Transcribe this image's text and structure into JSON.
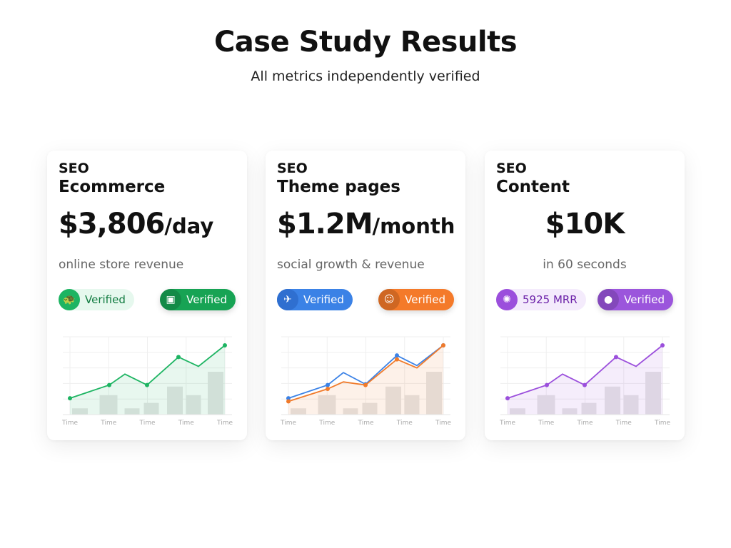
{
  "header": {
    "title": "Case Study Results",
    "subtitle": "All metrics independently verified"
  },
  "cards": [
    {
      "category": "SEO",
      "name": "Ecommerce",
      "metric": "$3,806",
      "unit": "/day",
      "description": "online store revenue",
      "badges": [
        {
          "icon": "turtle-icon",
          "label": "Verified"
        },
        {
          "icon": "box-stack-icon",
          "label": "Verified"
        }
      ],
      "colors": {
        "accent": "#1db462",
        "badge1_bg": "#e6f8ee",
        "badge1_text": "#0f7a3f",
        "badge2_bg": "#17a354"
      }
    },
    {
      "category": "SEO",
      "name": "Theme pages",
      "metric": "$1.2M",
      "unit": "/month",
      "description": "social growth & revenue",
      "badges": [
        {
          "icon": "rocket-icon",
          "label": "Verified"
        },
        {
          "icon": "badge-face-icon",
          "label": "Verified"
        }
      ],
      "colors": {
        "accent": "#f07a2a",
        "accent2": "#3b82e6",
        "badge1_bg": "#3b82e6",
        "badge1_text": "#ffffff",
        "badge2_bg": "#f47a2a"
      }
    },
    {
      "category": "SEO",
      "name": "Content",
      "metric": "$10K",
      "unit": "",
      "description": "in 60 seconds",
      "badges": [
        {
          "icon": "gear-bug-icon",
          "label": "5925 MRR"
        },
        {
          "icon": "piggy-bank-icon",
          "label": "Verified"
        }
      ],
      "colors": {
        "accent": "#9b4fdc",
        "badge1_bg": "#f4ebfc",
        "badge1_text": "#6b21a8",
        "badge2_bg": "#9b55dc"
      }
    }
  ],
  "chart_data": [
    {
      "type": "line",
      "x_labels": [
        "Time",
        "Time",
        "Time",
        "Time",
        "Time"
      ],
      "line": [
        21,
        38,
        52,
        38,
        74,
        62,
        89
      ],
      "bars": [
        8,
        25,
        8,
        15,
        36,
        25,
        55
      ],
      "ylim": [
        0,
        100
      ],
      "grid": true
    },
    {
      "type": "line",
      "x_labels": [
        "Time",
        "Time",
        "Time",
        "Time",
        "Time"
      ],
      "series": [
        {
          "values": [
            21,
            38,
            54,
            39,
            76,
            63,
            89
          ],
          "color": "#3b82e6"
        },
        {
          "values": [
            17,
            33,
            42,
            38,
            71,
            60,
            89
          ],
          "color": "#f07a2a"
        }
      ],
      "bars": [
        8,
        25,
        8,
        15,
        36,
        25,
        55
      ],
      "ylim": [
        0,
        100
      ],
      "grid": true
    },
    {
      "type": "line",
      "x_labels": [
        "Time",
        "Time",
        "Time",
        "Time",
        "Time"
      ],
      "line": [
        21,
        38,
        52,
        38,
        74,
        62,
        89
      ],
      "bars": [
        8,
        25,
        8,
        15,
        36,
        25,
        55
      ],
      "ylim": [
        0,
        100
      ],
      "grid": true
    }
  ]
}
